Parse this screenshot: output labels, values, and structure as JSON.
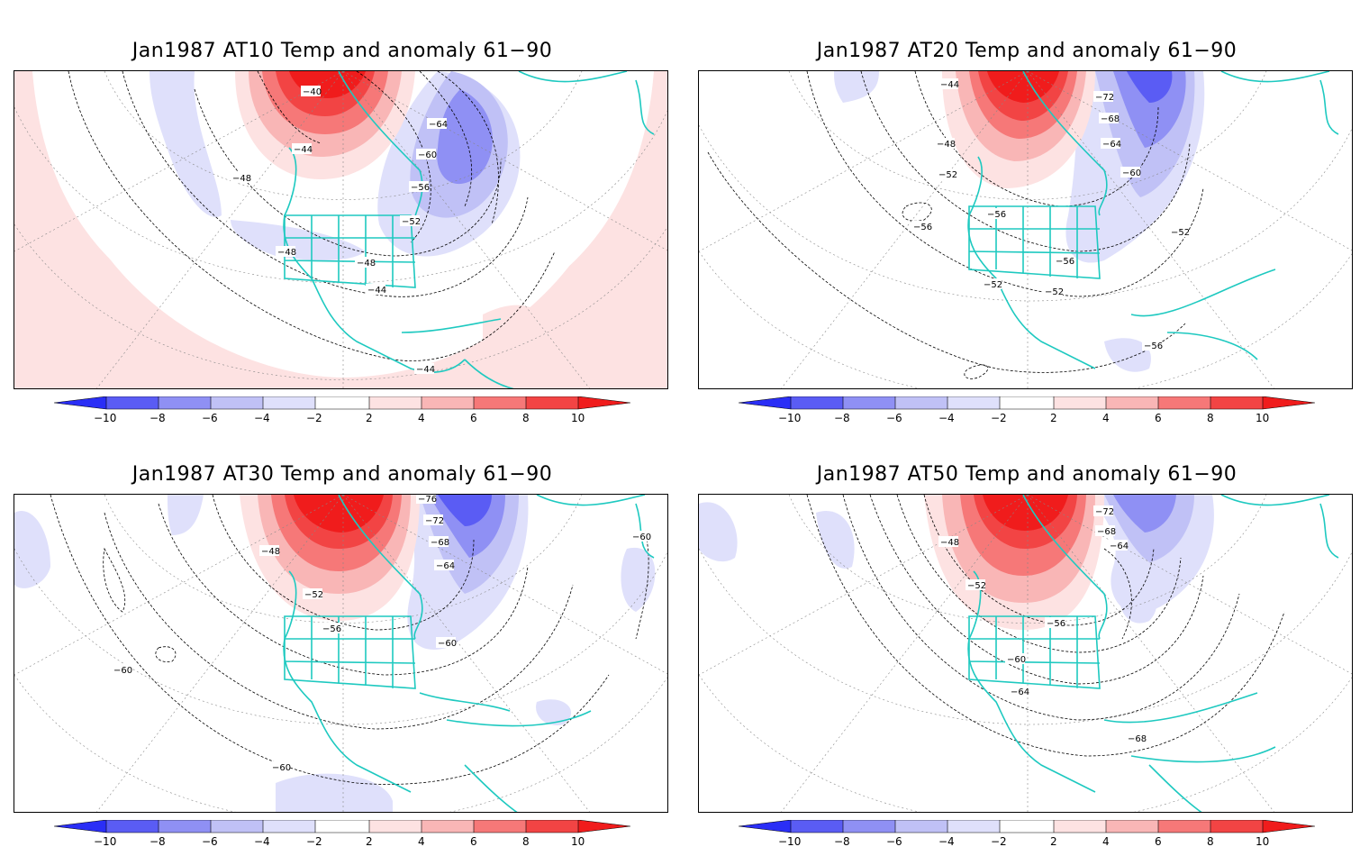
{
  "colors": {
    "blue_10": "#2a2ef6",
    "blue_8": "#5a5cf4",
    "blue_6": "#8f90f4",
    "blue_4": "#c0c1f6",
    "blue_2": "#dfe0fb",
    "white": "#ffffff",
    "red_2": "#fde2e2",
    "red_4": "#f9b6b6",
    "red_6": "#f67878",
    "red_8": "#f24444",
    "red_10": "#f01c1c",
    "coast": "#1ec9c0",
    "contour": "#000000"
  },
  "colorbar": {
    "ticks": [
      "−10",
      "−8",
      "−6",
      "−4",
      "−2",
      "2",
      "4",
      "6",
      "8",
      "10"
    ]
  },
  "panels": [
    {
      "title": "Jan1987 AT10 Temp and anomaly 61−90",
      "contour_labels": [
        "−40",
        "−44",
        "−48",
        "−64",
        "−60",
        "−56",
        "−52",
        "−48",
        "−48",
        "−44",
        "−44"
      ]
    },
    {
      "title": "Jan1987 AT20 Temp and anomaly 61−90",
      "contour_labels": [
        "−44",
        "−72",
        "−68",
        "−48",
        "−64",
        "−52",
        "−60",
        "−56",
        "−56",
        "−52",
        "−56",
        "−52",
        "−52",
        "−56"
      ]
    },
    {
      "title": "Jan1987 AT30 Temp and anomaly 61−90",
      "contour_labels": [
        "−76",
        "−72",
        "−48",
        "−68",
        "−64",
        "−52",
        "−56",
        "−60",
        "−60",
        "−60",
        "−60"
      ]
    },
    {
      "title": "Jan1987 AT50 Temp and anomaly 61−90",
      "contour_labels": [
        "−72",
        "−48",
        "−68",
        "−64",
        "−52",
        "−56",
        "−60",
        "−64",
        "−68"
      ]
    }
  ]
}
